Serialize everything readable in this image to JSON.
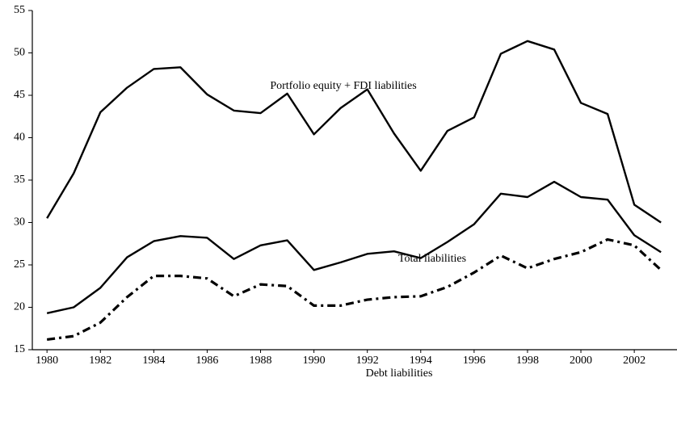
{
  "chart_data": {
    "type": "line",
    "x": [
      1980,
      1981,
      1982,
      1983,
      1984,
      1985,
      1986,
      1987,
      1988,
      1989,
      1990,
      1991,
      1992,
      1993,
      1994,
      1995,
      1996,
      1997,
      1998,
      1999,
      2000,
      2001,
      2002,
      2003
    ],
    "series": [
      {
        "name": "Portfolio equity + FDI liabilities",
        "color": "#000000",
        "dash": "solid",
        "values": [
          30.5,
          35.8,
          43,
          45.9,
          48.1,
          48.3,
          45.1,
          43.2,
          42.9,
          45.2,
          40.4,
          43.5,
          45.7,
          40.5,
          36.1,
          40.8,
          42.4,
          49.9,
          51.4,
          50.4,
          44.1,
          42.8,
          32.1,
          30.0
        ]
      },
      {
        "name": "Total liabilities",
        "color": "#000000",
        "dash": "solid",
        "values": [
          19.3,
          20.0,
          22.3,
          25.9,
          27.8,
          28.4,
          28.2,
          25.7,
          27.3,
          27.9,
          24.4,
          25.3,
          26.3,
          26.6,
          25.8,
          27.7,
          29.8,
          33.4,
          33.0,
          34.8,
          33.0,
          32.7,
          28.5,
          26.5
        ]
      },
      {
        "name": "Debt liabilities",
        "color": "#000000",
        "dash": "dashdot",
        "values": [
          16.2,
          16.6,
          18.2,
          21.2,
          23.7,
          23.7,
          23.4,
          21.3,
          22.7,
          22.5,
          20.2,
          20.2,
          20.9,
          21.2,
          21.3,
          22.4,
          24.1,
          26.1,
          24.6,
          25.7,
          26.5,
          28.0,
          27.3,
          24.4
        ]
      }
    ],
    "xlim": [
      1979.45,
      2003.6
    ],
    "xticks": [
      1980,
      1982,
      1984,
      1986,
      1988,
      1990,
      1992,
      1994,
      1996,
      1998,
      2000,
      2002
    ],
    "ylim": [
      15,
      55
    ],
    "yticks": [
      15,
      20,
      25,
      30,
      35,
      40,
      45,
      50,
      55
    ],
    "grid": false
  }
}
